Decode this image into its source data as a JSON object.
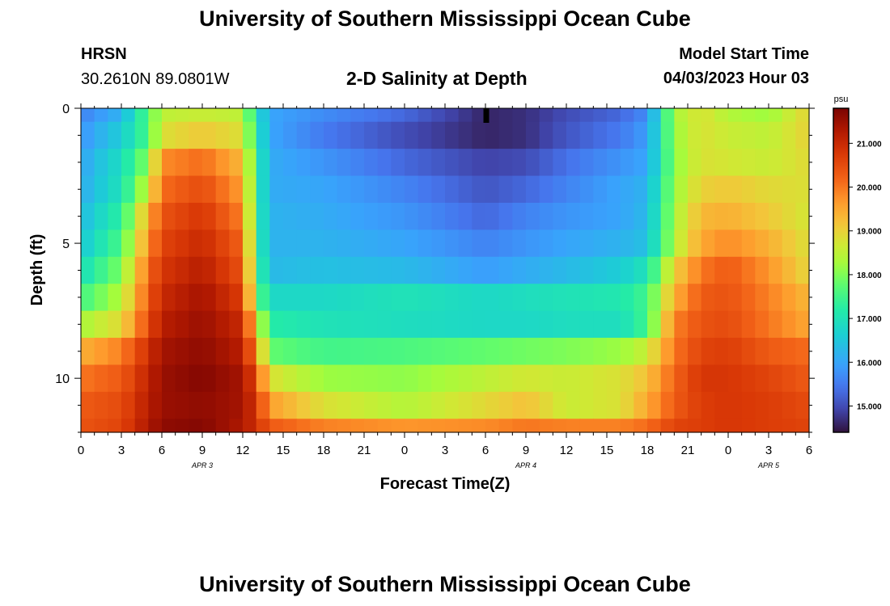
{
  "header": {
    "title": "University of Southern Mississippi Ocean Cube",
    "station": "HRSN",
    "coords": "30.2610N  89.0801W",
    "subtitle": "2-D Salinity at Depth",
    "model_label": "Model Start Time",
    "model_time": "04/03/2023 Hour 03"
  },
  "footer": {
    "title": "University of Southern Mississippi Ocean Cube"
  },
  "chart_data": {
    "type": "heatmap",
    "title": "2-D Salinity at Depth",
    "xlabel": "Forecast Time(Z)",
    "ylabel": "Depth (ft)",
    "x_ticks": [
      "0",
      "3",
      "6",
      "9",
      "12",
      "15",
      "18",
      "21",
      "0",
      "3",
      "6",
      "9",
      "12",
      "15",
      "18",
      "21",
      "0",
      "3",
      "6"
    ],
    "x_hours": [
      0,
      3,
      6,
      9,
      12,
      15,
      18,
      21,
      24,
      27,
      30,
      33,
      36,
      39,
      42,
      45,
      48,
      51,
      54
    ],
    "date_labels": [
      {
        "text": "APR 3",
        "hour": 9
      },
      {
        "text": "APR 4",
        "hour": 33
      },
      {
        "text": "APR 5",
        "hour": 51
      }
    ],
    "y_ticks": [
      {
        "value": 0,
        "label": "0"
      },
      {
        "value": 5,
        "label": "5"
      },
      {
        "value": 10,
        "label": "10"
      }
    ],
    "xlim": [
      0,
      54
    ],
    "ylim": [
      0,
      12
    ],
    "depth_levels": 12,
    "time_step_hours": 1,
    "colorbar": {
      "unit": "psu",
      "min": 14.4,
      "max": 21.8,
      "ticks": [
        "15.000",
        "16.000",
        "17.000",
        "18.000",
        "19.000",
        "20.000",
        "21.000"
      ],
      "tick_values": [
        15,
        16,
        17,
        18,
        19,
        20,
        21
      ]
    },
    "keyframes_hours": [
      0,
      3,
      5,
      6,
      9,
      12,
      13,
      14,
      18,
      24,
      30,
      33,
      36,
      40,
      42,
      44,
      46,
      48,
      51,
      54
    ],
    "salinity_keyframes": [
      [
        15.6,
        16.2,
        17.7,
        18.5,
        18.6,
        18.5,
        17.0,
        16.0,
        15.7,
        15.3,
        14.6,
        14.7,
        15.0,
        15.3,
        15.7,
        18.3,
        18.8,
        18.4,
        18.2,
        19.0
      ],
      [
        15.8,
        16.6,
        17.6,
        18.8,
        19.1,
        18.8,
        17.2,
        16.0,
        15.5,
        15.0,
        14.6,
        14.7,
        15.1,
        15.5,
        15.9,
        18.2,
        18.8,
        18.6,
        18.5,
        19.0
      ],
      [
        16.0,
        16.9,
        18.1,
        19.8,
        20.1,
        19.3,
        17.4,
        16.1,
        15.8,
        15.3,
        14.9,
        15.0,
        15.4,
        15.8,
        16.0,
        18.1,
        18.8,
        18.7,
        18.6,
        18.9
      ],
      [
        16.1,
        17.0,
        18.6,
        20.1,
        20.5,
        19.6,
        17.4,
        16.1,
        16.0,
        15.6,
        15.1,
        15.3,
        15.6,
        16.0,
        16.2,
        18.2,
        19.0,
        19.1,
        18.9,
        18.8
      ],
      [
        16.3,
        17.3,
        19.4,
        20.4,
        20.8,
        19.9,
        17.4,
        16.2,
        16.1,
        15.8,
        15.3,
        15.6,
        15.8,
        16.0,
        16.3,
        18.3,
        19.3,
        19.4,
        19.1,
        18.7
      ],
      [
        16.5,
        17.6,
        19.7,
        20.6,
        21.0,
        20.2,
        17.5,
        16.2,
        16.2,
        16.0,
        15.6,
        15.8,
        16.0,
        16.2,
        16.4,
        18.4,
        19.5,
        19.8,
        19.4,
        18.8
      ],
      [
        16.9,
        18.0,
        20.1,
        20.8,
        21.2,
        20.4,
        17.7,
        16.3,
        16.4,
        16.3,
        15.9,
        16.1,
        16.3,
        16.6,
        17.0,
        19.0,
        20.0,
        20.3,
        19.7,
        18.9
      ],
      [
        17.5,
        18.4,
        20.3,
        21.0,
        21.4,
        20.7,
        18.0,
        16.8,
        16.8,
        17.0,
        16.8,
        16.9,
        17.0,
        17.1,
        17.5,
        19.4,
        20.3,
        20.4,
        19.9,
        19.3
      ],
      [
        18.3,
        18.9,
        20.5,
        21.2,
        21.5,
        21.0,
        19.0,
        17.2,
        17.0,
        16.9,
        16.8,
        16.8,
        16.9,
        16.9,
        17.5,
        19.9,
        20.4,
        20.5,
        20.0,
        19.5
      ],
      [
        19.4,
        19.9,
        20.9,
        21.4,
        21.6,
        21.2,
        19.8,
        17.8,
        17.5,
        17.6,
        17.8,
        17.9,
        18.0,
        18.2,
        18.6,
        20.0,
        20.6,
        20.7,
        20.3,
        20.1
      ],
      [
        20.0,
        20.3,
        21.1,
        21.5,
        21.7,
        21.4,
        20.5,
        18.8,
        18.2,
        18.1,
        18.5,
        18.7,
        18.6,
        18.8,
        19.2,
        20.2,
        20.8,
        20.8,
        20.6,
        20.3
      ],
      [
        20.3,
        20.5,
        21.2,
        21.5,
        21.6,
        21.4,
        20.8,
        19.6,
        18.8,
        18.4,
        18.9,
        19.2,
        18.6,
        18.8,
        19.5,
        20.3,
        20.7,
        20.8,
        20.7,
        20.5
      ],
      [
        20.4,
        20.6,
        21.3,
        21.6,
        21.7,
        21.3,
        20.9,
        20.3,
        19.9,
        19.7,
        19.8,
        20.0,
        19.9,
        19.9,
        20.1,
        20.6,
        20.7,
        20.8,
        20.7,
        20.6
      ]
    ]
  }
}
